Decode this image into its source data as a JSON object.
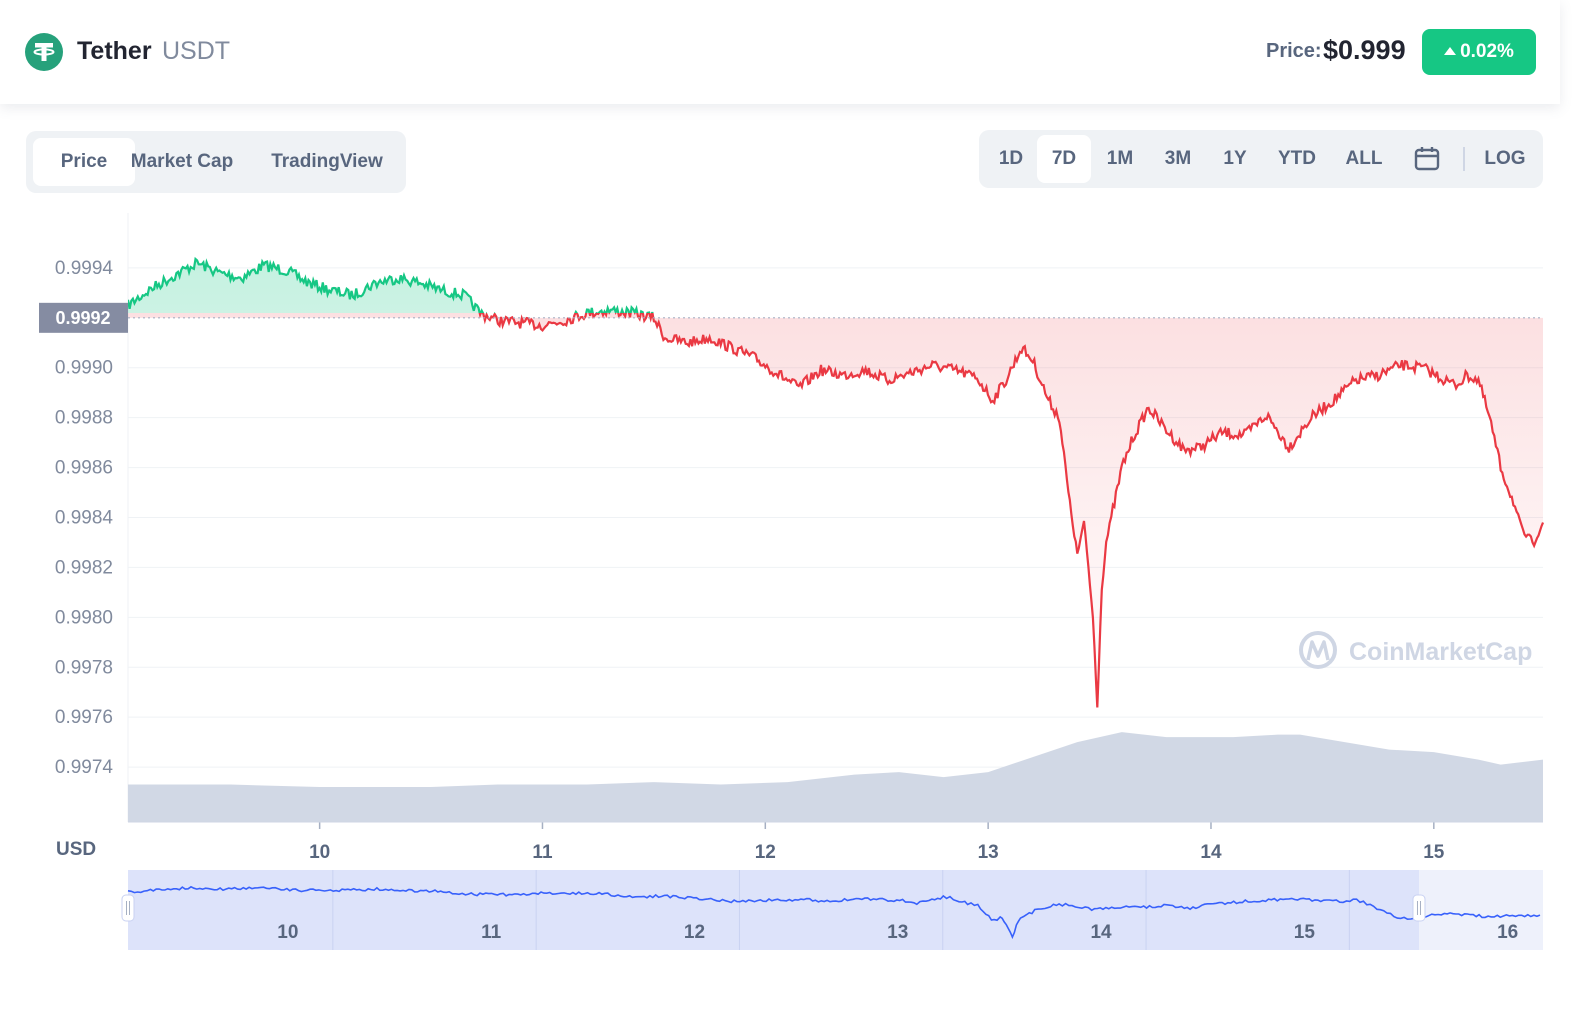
{
  "header": {
    "coin_name": "Tether",
    "coin_symbol": "USDT",
    "price_label": "Price:",
    "price_value": "$0.999",
    "change": "0.02%",
    "change_color": "#16c784"
  },
  "view_tabs": [
    {
      "label": "Price",
      "active": true
    },
    {
      "label": "Market Cap",
      "active": false
    },
    {
      "label": "TradingView",
      "active": false
    }
  ],
  "range_tabs": [
    {
      "label": "1D",
      "active": false
    },
    {
      "label": "7D",
      "active": true
    },
    {
      "label": "1M",
      "active": false
    },
    {
      "label": "3M",
      "active": false
    },
    {
      "label": "1Y",
      "active": false
    },
    {
      "label": "YTD",
      "active": false
    },
    {
      "label": "ALL",
      "active": false
    }
  ],
  "log_label": "LOG",
  "calendar_icon": "calendar-icon",
  "chart_data": {
    "type": "line",
    "currency_label": "USD",
    "watermark": "CoinMarketCap",
    "reference_price": 0.9992,
    "reference_label": "0.9992",
    "up_color": "#16c784",
    "down_color": "#ea3943",
    "volume_color": "#cfd6e4",
    "ylim": [
      0.99718,
      0.99962
    ],
    "xlim": [
      9.14,
      15.49
    ],
    "yticks": [
      {
        "value": 0.9994,
        "label": "0.9994"
      },
      {
        "value": 0.999,
        "label": "0.9990"
      },
      {
        "value": 0.9988,
        "label": "0.9988"
      },
      {
        "value": 0.9986,
        "label": "0.9986"
      },
      {
        "value": 0.9984,
        "label": "0.9984"
      },
      {
        "value": 0.9982,
        "label": "0.9982"
      },
      {
        "value": 0.998,
        "label": "0.9980"
      },
      {
        "value": 0.9978,
        "label": "0.9978"
      },
      {
        "value": 0.9976,
        "label": "0.9976"
      },
      {
        "value": 0.9974,
        "label": "0.9974"
      }
    ],
    "xticks": [
      {
        "value": 10,
        "label": "10"
      },
      {
        "value": 11,
        "label": "11"
      },
      {
        "value": 12,
        "label": "12"
      },
      {
        "value": 13,
        "label": "13"
      },
      {
        "value": 14,
        "label": "14"
      },
      {
        "value": 15,
        "label": "15"
      }
    ],
    "series": [
      {
        "x": [
          9.14,
          9.25,
          9.35,
          9.45,
          9.55,
          9.65,
          9.75,
          9.85,
          9.95,
          10.05,
          10.15,
          10.25,
          10.35,
          10.45,
          10.55,
          10.65,
          10.72,
          10.8,
          10.9,
          11.0,
          11.1,
          11.2,
          11.3,
          11.4,
          11.5,
          11.55,
          11.65,
          11.75,
          11.85,
          11.95,
          12.05,
          12.15,
          12.25,
          12.35,
          12.45,
          12.55,
          12.65,
          12.75,
          12.85,
          12.95,
          13.02,
          13.08,
          13.15,
          13.2,
          13.27,
          13.32,
          13.36,
          13.4,
          13.43,
          13.45,
          13.47,
          13.49,
          13.51,
          13.53,
          13.56,
          13.6,
          13.65,
          13.72,
          13.8,
          13.88,
          13.95,
          14.05,
          14.15,
          14.25,
          14.35,
          14.45,
          14.55,
          14.65,
          14.75,
          14.85,
          14.95,
          15.05,
          15.1,
          15.15,
          15.2,
          15.25,
          15.3,
          15.35,
          15.4,
          15.45,
          15.49
        ],
        "y": [
          0.99925,
          0.99932,
          0.99937,
          0.99942,
          0.99938,
          0.99936,
          0.99941,
          0.99939,
          0.99934,
          0.99931,
          0.99929,
          0.99934,
          0.99936,
          0.99934,
          0.99931,
          0.99929,
          0.99922,
          0.99919,
          0.99918,
          0.99917,
          0.99919,
          0.99922,
          0.99923,
          0.99922,
          0.9992,
          0.99912,
          0.9991,
          0.99912,
          0.99908,
          0.99904,
          0.99898,
          0.99892,
          0.99899,
          0.99897,
          0.99899,
          0.99895,
          0.99898,
          0.99901,
          0.99899,
          0.99896,
          0.99887,
          0.99895,
          0.99908,
          0.99903,
          0.99887,
          0.9988,
          0.9985,
          0.99825,
          0.99838,
          0.9982,
          0.998,
          0.99765,
          0.99812,
          0.9983,
          0.99843,
          0.9986,
          0.99872,
          0.99884,
          0.99875,
          0.99867,
          0.99868,
          0.99874,
          0.99873,
          0.99881,
          0.99868,
          0.9988,
          0.99887,
          0.99895,
          0.99897,
          0.99901,
          0.999,
          0.99895,
          0.99893,
          0.99897,
          0.99895,
          0.9988,
          0.9986,
          0.99848,
          0.99834,
          0.9983,
          0.99838
        ]
      }
    ],
    "volume": {
      "x": [
        9.14,
        9.6,
        10.0,
        10.5,
        10.8,
        11.2,
        11.5,
        11.8,
        12.1,
        12.4,
        12.6,
        12.8,
        13.0,
        13.2,
        13.4,
        13.6,
        13.8,
        14.0,
        14.1,
        14.3,
        14.4,
        14.6,
        14.8,
        15.0,
        15.2,
        15.3,
        15.49
      ],
      "y": [
        0.99733,
        0.99733,
        0.99732,
        0.99732,
        0.99733,
        0.99733,
        0.99734,
        0.99733,
        0.99734,
        0.99737,
        0.99738,
        0.99736,
        0.99738,
        0.99744,
        0.9975,
        0.99754,
        0.99752,
        0.99752,
        0.99752,
        0.99753,
        0.99753,
        0.9975,
        0.99747,
        0.99746,
        0.99743,
        0.99741,
        0.99743
      ]
    }
  },
  "navigator": {
    "labels": [
      "10",
      "11",
      "12",
      "13",
      "14",
      "15",
      "16"
    ],
    "selection_start": 9.14,
    "selection_end": 15.49,
    "xlim": [
      9.14,
      16.1
    ]
  }
}
